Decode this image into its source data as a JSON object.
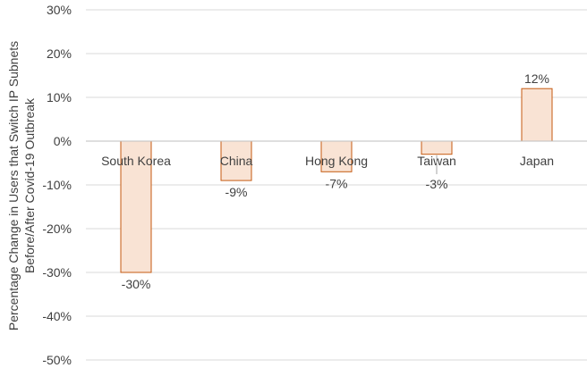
{
  "chart_data": {
    "type": "bar",
    "categories": [
      "South Korea",
      "China",
      "Hong Kong",
      "Taiwan",
      "Japan"
    ],
    "values": [
      -30,
      -9,
      -7,
      -3,
      12
    ],
    "data_labels": [
      "-30%",
      "-9%",
      "-7%",
      "-3%",
      "12%"
    ],
    "yticks": [
      30,
      20,
      10,
      0,
      -10,
      -20,
      -30,
      -40,
      -50
    ],
    "ytick_labels": [
      "30%",
      "20%",
      "10%",
      "0%",
      "-10%",
      "-20%",
      "-30%",
      "-40%",
      "-50%"
    ],
    "ylim": [
      -50,
      30
    ],
    "ylabel_line1": "Percentage Change in Users that Switch IP Subnets",
    "ylabel_line2": "Before/After Covid-19 Outbreak",
    "grid": true,
    "colors": {
      "bar_fill": "#f9e3d4",
      "bar_stroke": "#c55a11",
      "grid": "#d9d9d9",
      "text": "#404040"
    }
  }
}
